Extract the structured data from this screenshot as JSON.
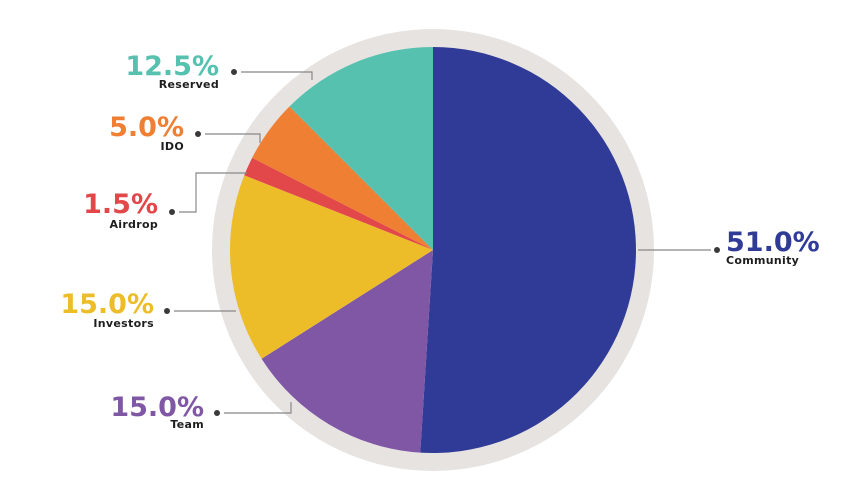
{
  "chart_data": {
    "type": "pie",
    "slices": [
      {
        "label": "Community",
        "value": 51.0,
        "value_text": "51.0%",
        "color": "#2f3b96"
      },
      {
        "label": "Team",
        "value": 15.0,
        "value_text": "15.0%",
        "color": "#7f57a5"
      },
      {
        "label": "Investors",
        "value": 15.0,
        "value_text": "15.0%",
        "color": "#ecbd29"
      },
      {
        "label": "Airdrop",
        "value": 1.5,
        "value_text": "1.5%",
        "color": "#e2474a"
      },
      {
        "label": "IDO",
        "value": 5.0,
        "value_text": "5.0%",
        "color": "#ef7f33"
      },
      {
        "label": "Reserved",
        "value": 12.5,
        "value_text": "12.5%",
        "color": "#55c1ae"
      }
    ],
    "start": "top, clockwise",
    "ring_color": "#e6e3e1",
    "leader_color": "#888888"
  }
}
